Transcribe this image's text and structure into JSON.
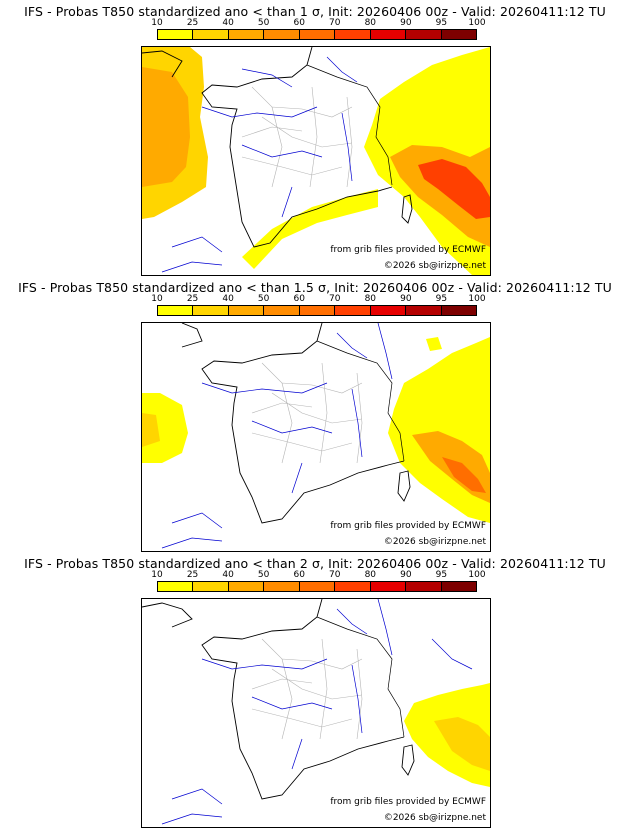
{
  "colors": {
    "level_10": "#ffff00",
    "level_25": "#ffd500",
    "level_40": "#ffaa00",
    "level_50": "#ff8c00",
    "level_60": "#ff6e00",
    "level_70": "#ff4000",
    "level_80": "#e60000",
    "level_90": "#b40000",
    "level_95": "#7d0000",
    "level_100": "#3c0000",
    "coastline": "#000000",
    "rivers": "#0000d0",
    "borders": "#b4b4b4"
  },
  "scale": {
    "ticks": [
      "10",
      "25",
      "40",
      "50",
      "60",
      "70",
      "80",
      "90",
      "95",
      "100"
    ],
    "cell_colors": [
      "#ffff00",
      "#ffd500",
      "#ffaa00",
      "#ff8c00",
      "#ff6e00",
      "#ff4000",
      "#e60000",
      "#b40000",
      "#7d0000"
    ]
  },
  "panels": [
    {
      "title": "IFS - Probas T850  standardized ano < than 1 σ, Init: 20260406 00z - Valid: 20260411:12 TU",
      "source_note": "from grib files provided by ECMWF",
      "copyright": "©2026 sb@irizpne.net",
      "threshold_sigma": 1,
      "coverage": "high"
    },
    {
      "title": "IFS - Probas T850  standardized ano < than 1.5 σ, Init: 20260406 00z - Valid: 20260411:12 TU",
      "source_note": "from grib files provided by ECMWF",
      "copyright": "©2026 sb@irizpne.net",
      "threshold_sigma": 1.5,
      "coverage": "medium"
    },
    {
      "title": "IFS - Probas T850  standardized ano < than 2 σ, Init: 20260406 00z - Valid: 20260411:12 TU",
      "source_note": "from grib files provided by ECMWF",
      "copyright": "©2026 sb@irizpne.net",
      "threshold_sigma": 2,
      "coverage": "low"
    }
  ]
}
